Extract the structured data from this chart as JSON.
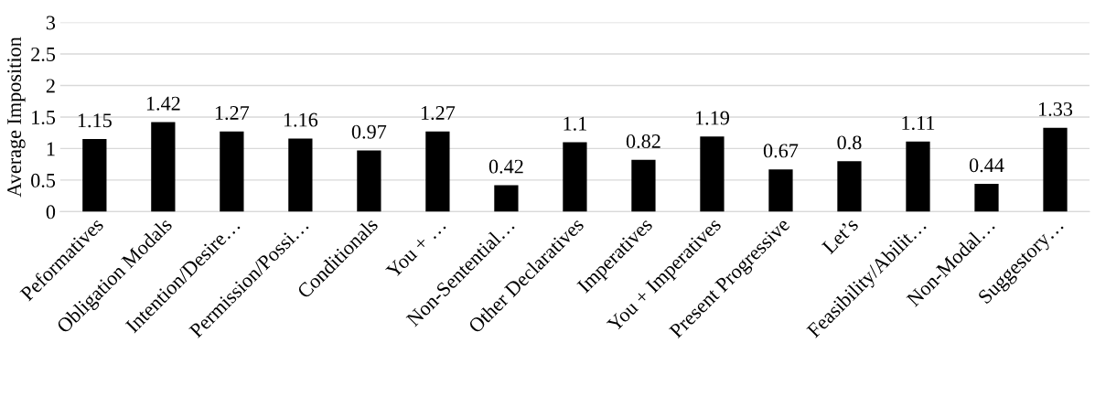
{
  "chart_data": {
    "type": "bar",
    "ylabel": "Average Imposition",
    "categories": [
      "Peformatives",
      "Obligation Modals",
      "Intention/Desire…",
      "Permission/Possi…",
      "Conditionals",
      "You + …",
      "Non-Sentential…",
      "Other Declaratives",
      "Imperatives",
      "You + Imperatives",
      "Present Progressive",
      "Let’s",
      "Feasibility/Abilit…",
      "Non-Modal…",
      "Suggestory…"
    ],
    "values": [
      1.15,
      1.42,
      1.27,
      1.16,
      0.97,
      1.27,
      0.42,
      1.1,
      0.82,
      1.19,
      0.67,
      0.8,
      1.11,
      0.44,
      1.33
    ],
    "color": "#000000",
    "ylim": [
      0,
      3
    ],
    "yticks": [
      0,
      0.5,
      1,
      1.5,
      2,
      2.5,
      3
    ],
    "grid": "y",
    "data_labels": true
  }
}
